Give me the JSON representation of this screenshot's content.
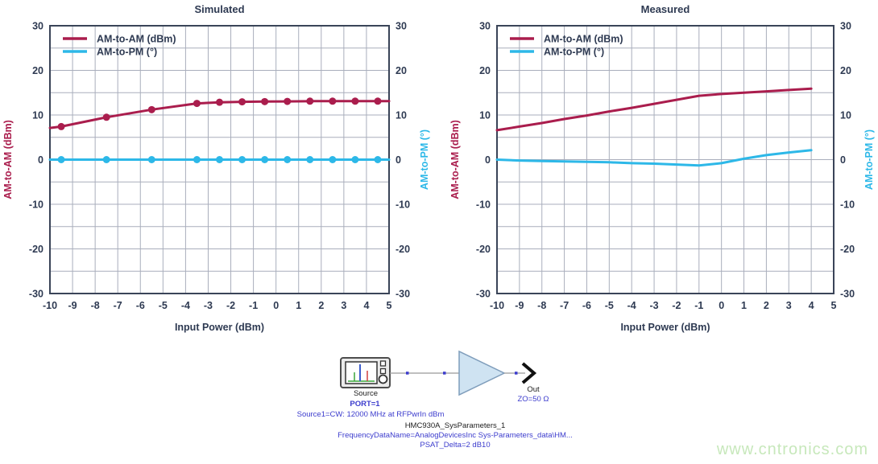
{
  "page": {
    "background": "#ffffff",
    "watermark": {
      "text": "www.cntronics.com",
      "color": "#c7e8bb"
    }
  },
  "colors": {
    "am_am_red": "#aa1d4d",
    "am_pm_cyan": "#2db8e8",
    "text_navy": "#2e3a52",
    "grid_gray": "#a9aebc",
    "frame_navy": "#3a4458",
    "annotation_blue": "#3c3ccd",
    "wire_gray": "#999999",
    "amp_fill": "#cfe3f2",
    "amp_stroke": "#7f9dbb"
  },
  "diagram": {
    "source": {
      "label": "Source",
      "port": "PORT=1",
      "config": "Source1=CW: 12000 MHz at RFPwrIn dBm"
    },
    "output": {
      "label": "Out",
      "impedance": "ZO=50 Ω"
    },
    "component": {
      "name": "HMC930A_SysParameters_1",
      "frequency_data": "FrequencyDataName=AnalogDevicesInc Sys-Parameters_data\\HM...",
      "psat": "PSAT_Delta=2 dB10"
    }
  },
  "chart_data": [
    {
      "type": "line",
      "id": "simulated",
      "title": "Simulated",
      "xlabel": "Input Power (dBm)",
      "ylabel_left": "AM-to-AM (dBm)",
      "ylabel_right": "AM-to-PM (°)",
      "xlim": [
        -10,
        5
      ],
      "ylim": [
        -30,
        30
      ],
      "x_ticks": [
        -10,
        -9,
        -8,
        -7,
        -6,
        -5,
        -4,
        -3,
        -2,
        -1,
        0,
        1,
        2,
        3,
        4,
        5
      ],
      "y_ticks": [
        -30,
        -20,
        -10,
        0,
        10,
        20,
        30
      ],
      "x_grid_step": 1,
      "y_grid_step": 5,
      "grid": true,
      "legend_position": "top-left",
      "legend": [
        {
          "label": "AM-to-AM (dBm)",
          "color": "#aa1d4d"
        },
        {
          "label": "AM-to-PM (°)",
          "color": "#2db8e8"
        }
      ],
      "series": [
        {
          "name": "AM-to-AM (dBm)",
          "color": "#aa1d4d",
          "width": 3,
          "points": [
            [
              -10,
              7.1
            ],
            [
              -9.5,
              7.4
            ],
            [
              -7.5,
              9.5
            ],
            [
              -5.5,
              11.2
            ],
            [
              -3.5,
              12.6
            ],
            [
              -2.5,
              12.85
            ],
            [
              -1.5,
              12.95
            ],
            [
              -0.5,
              13.0
            ],
            [
              0.5,
              13.05
            ],
            [
              1.5,
              13.1
            ],
            [
              2.5,
              13.1
            ],
            [
              3.5,
              13.1
            ],
            [
              4.5,
              13.1
            ],
            [
              5,
              13.1
            ]
          ],
          "markers": [
            [
              -9.5,
              7.4
            ],
            [
              -7.5,
              9.5
            ],
            [
              -5.5,
              11.2
            ],
            [
              -3.5,
              12.6
            ],
            [
              -2.5,
              12.85
            ],
            [
              -1.5,
              12.95
            ],
            [
              -0.5,
              13.0
            ],
            [
              0.5,
              13.05
            ],
            [
              1.5,
              13.1
            ],
            [
              2.5,
              13.1
            ],
            [
              3.5,
              13.1
            ],
            [
              4.5,
              13.1
            ]
          ]
        },
        {
          "name": "AM-to-PM (°)",
          "color": "#2db8e8",
          "width": 3,
          "points": [
            [
              -10,
              0
            ],
            [
              5,
              0
            ]
          ],
          "markers": [
            [
              -9.5,
              0
            ],
            [
              -7.5,
              0
            ],
            [
              -5.5,
              0
            ],
            [
              -3.5,
              0
            ],
            [
              -2.5,
              0
            ],
            [
              -1.5,
              0
            ],
            [
              -0.5,
              0
            ],
            [
              0.5,
              0
            ],
            [
              1.5,
              0
            ],
            [
              2.5,
              0
            ],
            [
              3.5,
              0
            ],
            [
              4.5,
              0
            ]
          ]
        }
      ]
    },
    {
      "type": "line",
      "id": "measured",
      "title": "Measured",
      "xlabel": "Input Power (dBm)",
      "ylabel_left": "AM-to-AM (dBm)",
      "ylabel_right": "AM-to-PM (°)",
      "xlim": [
        -10,
        5
      ],
      "ylim": [
        -30,
        30
      ],
      "x_ticks": [
        -10,
        -9,
        -8,
        -7,
        -6,
        -5,
        -4,
        -3,
        -2,
        -1,
        0,
        1,
        2,
        3,
        4,
        5
      ],
      "y_ticks": [
        -30,
        -20,
        -10,
        0,
        10,
        20,
        30
      ],
      "x_grid_step": 1,
      "y_grid_step": 5,
      "grid": true,
      "legend_position": "top-left",
      "legend": [
        {
          "label": "AM-to-AM (dBm)",
          "color": "#aa1d4d"
        },
        {
          "label": "AM-to-PM (°)",
          "color": "#2db8e8"
        }
      ],
      "series": [
        {
          "name": "AM-to-AM (dBm)",
          "color": "#aa1d4d",
          "width": 3,
          "points": [
            [
              -10,
              6.6
            ],
            [
              -9,
              7.4
            ],
            [
              -8,
              8.2
            ],
            [
              -7,
              9.1
            ],
            [
              -6,
              9.9
            ],
            [
              -5,
              10.8
            ],
            [
              -4,
              11.6
            ],
            [
              -3,
              12.5
            ],
            [
              -2,
              13.4
            ],
            [
              -1,
              14.3
            ],
            [
              0,
              14.7
            ],
            [
              1,
              15.0
            ],
            [
              2,
              15.3
            ],
            [
              3,
              15.6
            ],
            [
              4,
              15.9
            ]
          ],
          "markers": []
        },
        {
          "name": "AM-to-PM (°)",
          "color": "#2db8e8",
          "width": 3,
          "points": [
            [
              -10,
              0
            ],
            [
              -9,
              -0.2
            ],
            [
              -8,
              -0.3
            ],
            [
              -7,
              -0.4
            ],
            [
              -6,
              -0.5
            ],
            [
              -5,
              -0.6
            ],
            [
              -4,
              -0.8
            ],
            [
              -3,
              -0.9
            ],
            [
              -2,
              -1.1
            ],
            [
              -1,
              -1.3
            ],
            [
              0,
              -0.8
            ],
            [
              1,
              0.2
            ],
            [
              2,
              1.0
            ],
            [
              3,
              1.6
            ],
            [
              4,
              2.1
            ]
          ],
          "markers": []
        }
      ]
    }
  ]
}
